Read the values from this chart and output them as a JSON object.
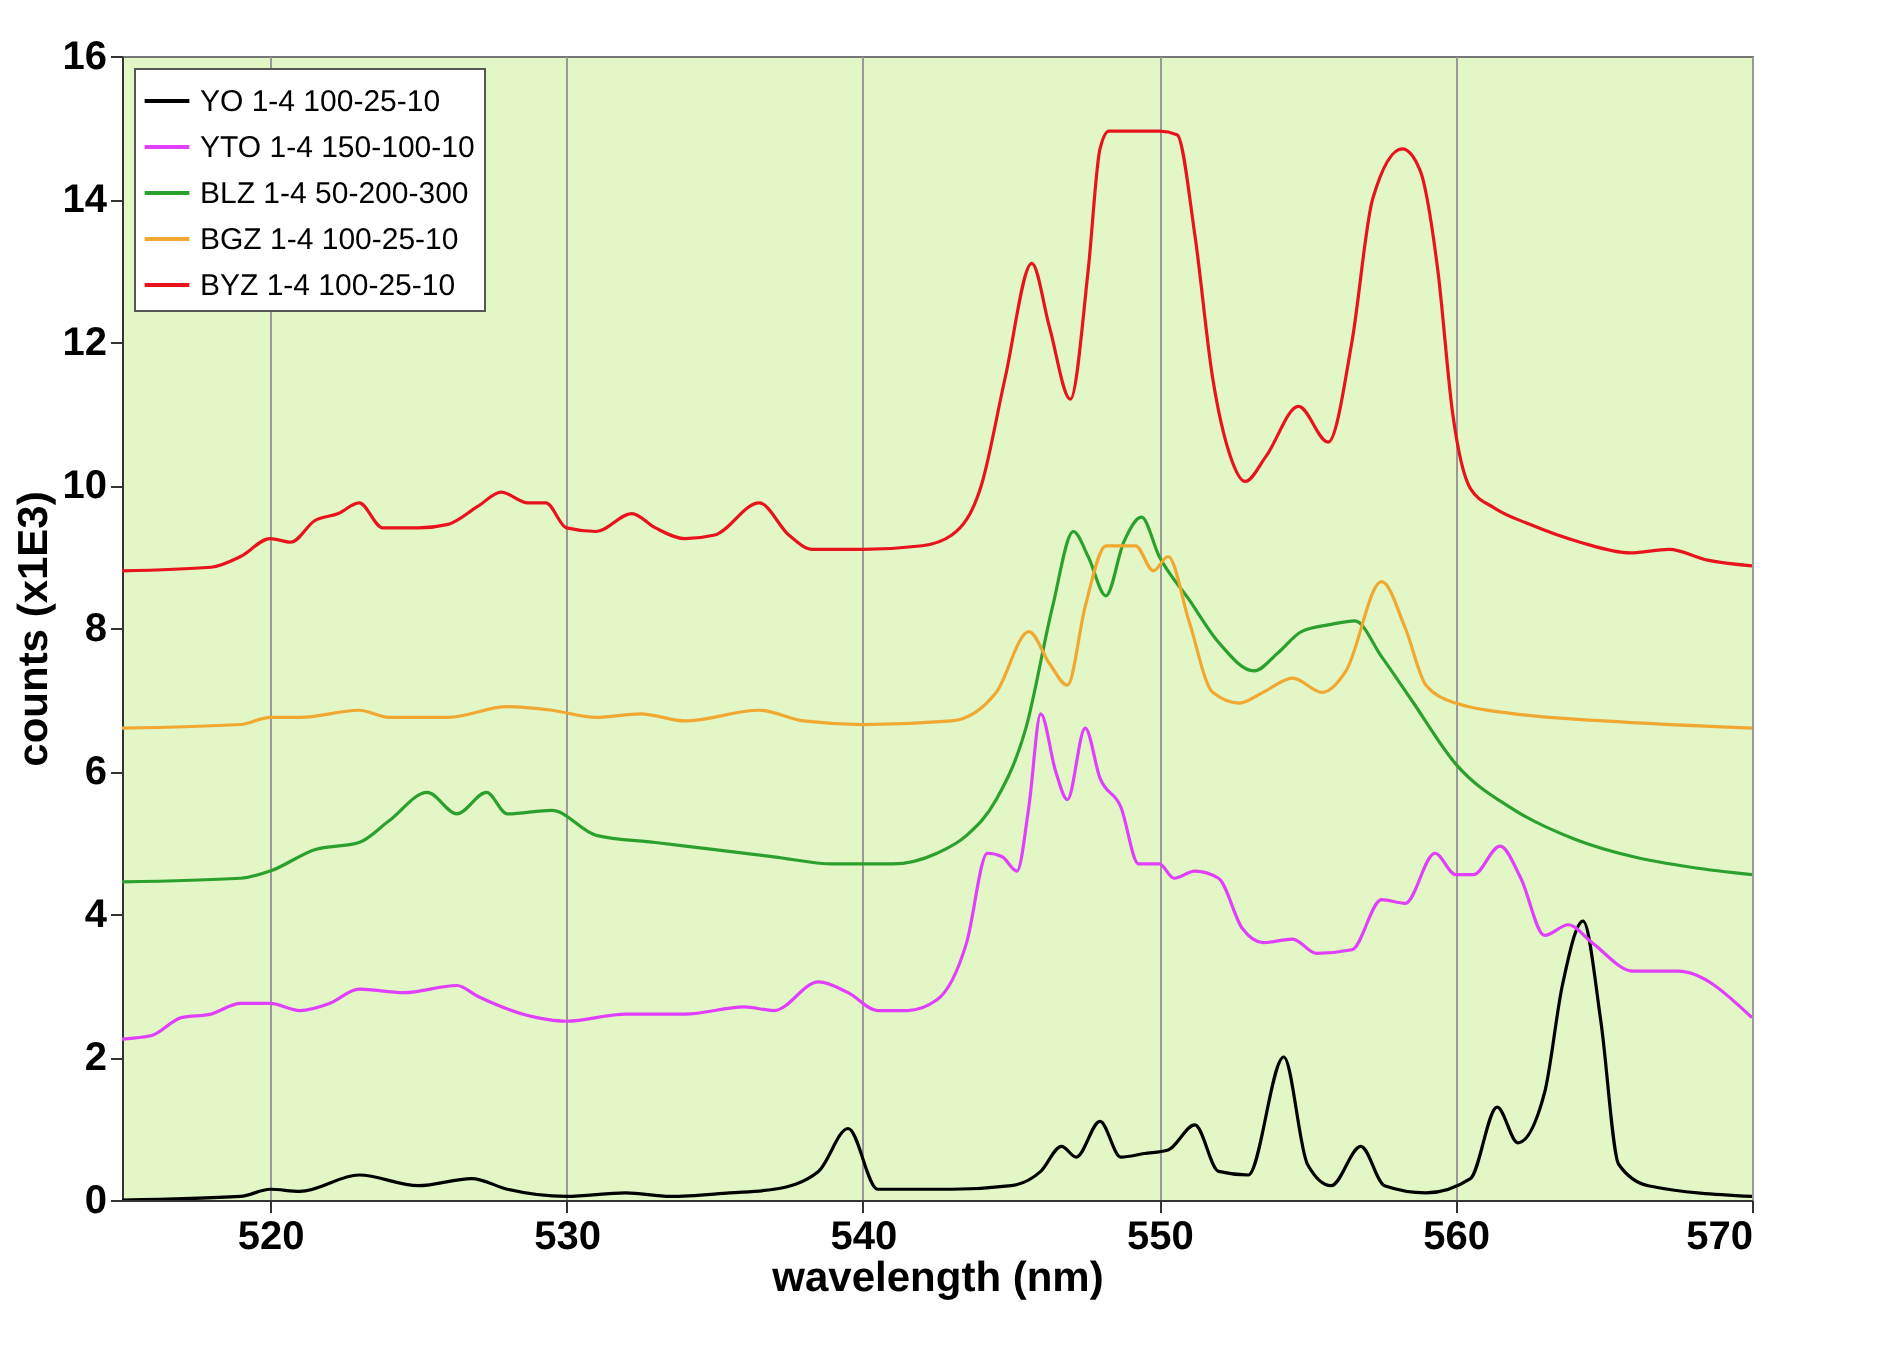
{
  "chart_data": {
    "type": "line",
    "xlabel": "wavelength (nm)",
    "ylabel": "counts (x1E3)",
    "xlim": [
      515,
      570
    ],
    "xticks": [
      520,
      530,
      540,
      550,
      560,
      570
    ],
    "ylim": [
      0,
      16
    ],
    "yticks": [
      0,
      2,
      4,
      6,
      8,
      10,
      12,
      14,
      16
    ],
    "grid": "x",
    "legend": "top left",
    "series": [
      {
        "name": "YO 1-4 100-25-10",
        "color": "#000000",
        "x": [
          515,
          519,
          520,
          521,
          523,
          525,
          526.8,
          528,
          530,
          532,
          533.5,
          535.5,
          537,
          538.5,
          539.5,
          540.5,
          543,
          545,
          546,
          546.7,
          547.2,
          548,
          548.7,
          549.5,
          550.3,
          551.2,
          552,
          553,
          554.2,
          555,
          555.8,
          556.8,
          557.6,
          559,
          560.5,
          561.4,
          562.1,
          563,
          563.6,
          564.3,
          564.9,
          565.5,
          566.5,
          570
        ],
        "values": [
          0.0,
          0.05,
          0.15,
          0.12,
          0.35,
          0.2,
          0.3,
          0.15,
          0.05,
          0.1,
          0.05,
          0.1,
          0.15,
          0.4,
          1.0,
          0.15,
          0.15,
          0.2,
          0.4,
          0.75,
          0.6,
          1.1,
          0.6,
          0.65,
          0.7,
          1.05,
          0.4,
          0.35,
          2.0,
          0.5,
          0.2,
          0.75,
          0.2,
          0.1,
          0.3,
          1.3,
          0.8,
          1.5,
          3.0,
          3.9,
          2.5,
          0.5,
          0.2,
          0.05
        ]
      },
      {
        "name": "YTO 1-4 150-100-10",
        "color": "#e040fb",
        "x": [
          515,
          516,
          517,
          518,
          519,
          520,
          521,
          522,
          523,
          524.5,
          526.3,
          527,
          529,
          530,
          532,
          534,
          536,
          537,
          538.5,
          539.5,
          540.5,
          541.5,
          542.5,
          543.5,
          544.2,
          544.7,
          545.2,
          545.6,
          546,
          546.5,
          546.9,
          547.5,
          548,
          548.7,
          549.3,
          550,
          550.5,
          551.2,
          552,
          552.8,
          553.5,
          554.5,
          555.3,
          556.5,
          557.5,
          558.3,
          559.3,
          560,
          560.6,
          561.5,
          562.2,
          563,
          563.8,
          564.6,
          566,
          567.5,
          570
        ],
        "values": [
          2.25,
          2.3,
          2.55,
          2.6,
          2.75,
          2.75,
          2.65,
          2.75,
          2.95,
          2.9,
          3.0,
          2.85,
          2.55,
          2.5,
          2.6,
          2.6,
          2.7,
          2.65,
          3.05,
          2.9,
          2.65,
          2.65,
          2.8,
          3.6,
          4.85,
          4.8,
          4.6,
          5.5,
          6.8,
          6.0,
          5.6,
          6.6,
          5.9,
          5.5,
          4.7,
          4.7,
          4.5,
          4.6,
          4.5,
          3.8,
          3.6,
          3.65,
          3.45,
          3.5,
          4.2,
          4.15,
          4.85,
          4.55,
          4.55,
          4.95,
          4.5,
          3.7,
          3.85,
          3.6,
          3.2,
          3.2,
          2.55
        ]
      },
      {
        "name": "BLZ 1-4 50-200-300",
        "color": "#2ca02c",
        "x": [
          515,
          519,
          520,
          521.5,
          523,
          524,
          525.3,
          526.3,
          527.3,
          528,
          529.5,
          531,
          533,
          535,
          537,
          539,
          541,
          542.5,
          543.5,
          544.5,
          545.5,
          546.4,
          547.1,
          547.6,
          548.2,
          548.8,
          549.4,
          550,
          551,
          552,
          553.2,
          554,
          554.8,
          555.8,
          556.6,
          557.5,
          558.5,
          560,
          562,
          564,
          566,
          568,
          570
        ],
        "values": [
          4.45,
          4.5,
          4.6,
          4.9,
          5.0,
          5.3,
          5.7,
          5.4,
          5.7,
          5.4,
          5.45,
          5.1,
          5.0,
          4.9,
          4.8,
          4.7,
          4.7,
          4.85,
          5.1,
          5.6,
          6.6,
          8.3,
          9.35,
          9.0,
          8.45,
          9.2,
          9.55,
          9.0,
          8.4,
          7.8,
          7.4,
          7.65,
          7.95,
          8.05,
          8.1,
          7.6,
          7.0,
          6.1,
          5.45,
          5.05,
          4.8,
          4.65,
          4.55
        ]
      },
      {
        "name": "BGZ 1-4 100-25-10",
        "color": "#f0a830",
        "x": [
          515,
          519,
          520,
          521,
          523,
          524,
          526,
          528,
          529.5,
          531,
          532.5,
          534,
          536.5,
          538,
          540,
          543,
          544.5,
          545.6,
          546.3,
          546.9,
          547.5,
          548.2,
          549.2,
          549.8,
          550.3,
          551,
          551.8,
          552.7,
          553.5,
          554.5,
          555.5,
          556.3,
          557.5,
          558.3,
          559,
          560,
          562,
          565,
          570
        ],
        "values": [
          6.6,
          6.65,
          6.75,
          6.75,
          6.85,
          6.75,
          6.75,
          6.9,
          6.85,
          6.75,
          6.8,
          6.7,
          6.85,
          6.7,
          6.65,
          6.7,
          7.1,
          7.95,
          7.5,
          7.2,
          8.3,
          9.15,
          9.15,
          8.8,
          9.0,
          8.1,
          7.1,
          6.95,
          7.1,
          7.3,
          7.1,
          7.4,
          8.65,
          8.0,
          7.2,
          6.95,
          6.8,
          6.7,
          6.6
        ]
      },
      {
        "name": "BYZ 1-4 100-25-10",
        "color": "#e8141c",
        "x": [
          515,
          518,
          519,
          520,
          520.7,
          521.5,
          522.3,
          523,
          523.8,
          525,
          526,
          527,
          527.8,
          528.7,
          529.3,
          530,
          531,
          532.2,
          533,
          534,
          535,
          536.5,
          537.5,
          538.3,
          540,
          542,
          543,
          544,
          544.8,
          545.7,
          546.3,
          547,
          547.6,
          548,
          548.3,
          549,
          550,
          550.6,
          551.2,
          551.8,
          552.4,
          552.9,
          553.6,
          554.7,
          555.7,
          556.5,
          557.2,
          558.2,
          558.8,
          559.4,
          559.9,
          560.5,
          561.3,
          562.5,
          564.2,
          565.9,
          567.2,
          568.5,
          570
        ],
        "values": [
          8.8,
          8.85,
          9.0,
          9.25,
          9.2,
          9.5,
          9.6,
          9.75,
          9.4,
          9.4,
          9.45,
          9.7,
          9.9,
          9.75,
          9.75,
          9.4,
          9.35,
          9.6,
          9.4,
          9.25,
          9.3,
          9.75,
          9.3,
          9.1,
          9.1,
          9.15,
          9.3,
          10.0,
          11.5,
          13.1,
          12.2,
          11.2,
          13.0,
          14.7,
          14.95,
          14.95,
          14.95,
          14.9,
          13.5,
          11.5,
          10.4,
          10.05,
          10.4,
          11.1,
          10.6,
          12.0,
          14.0,
          14.7,
          14.4,
          13.0,
          11.0,
          9.95,
          9.68,
          9.45,
          9.2,
          9.05,
          9.1,
          8.95,
          8.87
        ]
      }
    ]
  }
}
